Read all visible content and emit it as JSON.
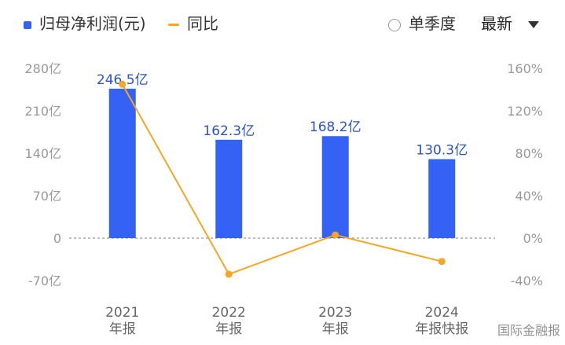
{
  "legend": {
    "bar_label": "归母净利润(元)",
    "line_label": "同比",
    "toggle_label": "单季度",
    "sort_label": "最新"
  },
  "watermark": "国际金融报",
  "colors": {
    "bar": "#3462f5",
    "line": "#f5a623",
    "bar_label": "#2b53c8",
    "axis_text": "#999999"
  },
  "chart_data": {
    "type": "bar",
    "categories": [
      [
        "2021",
        "年报"
      ],
      [
        "2022",
        "年报"
      ],
      [
        "2023",
        "年报"
      ],
      [
        "2024",
        "年报快报"
      ]
    ],
    "bar_series": {
      "name": "归母净利润(元)",
      "values": [
        246.5,
        162.3,
        168.2,
        130.3
      ],
      "labels": [
        "246.5亿",
        "162.3亿",
        "168.2亿",
        "130.3亿"
      ]
    },
    "line_series": {
      "name": "同比",
      "values": [
        145,
        -34,
        3,
        -22
      ]
    },
    "y_left": {
      "ticks": [
        280,
        210,
        140,
        70,
        0,
        -70
      ],
      "tick_labels": [
        "280亿",
        "210亿",
        "140亿",
        "70亿",
        "0",
        "-70亿"
      ],
      "ylim": [
        -70,
        280
      ]
    },
    "y_right": {
      "ticks": [
        160,
        120,
        80,
        40,
        0,
        -40
      ],
      "tick_labels": [
        "160%",
        "120%",
        "80%",
        "40%",
        "0%",
        "-40%"
      ],
      "ylim": [
        -40,
        160
      ]
    },
    "zero_line": "dashed",
    "legend_position": "top-left"
  }
}
